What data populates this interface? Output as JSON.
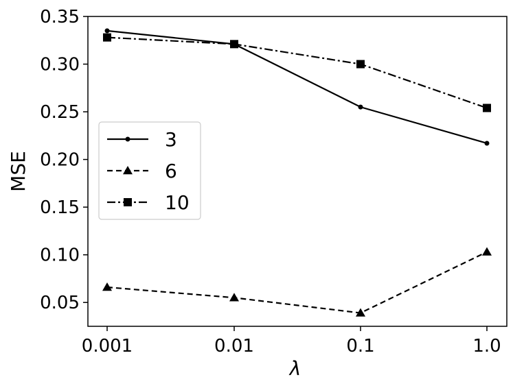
{
  "chart_data": {
    "type": "line",
    "categories": [
      "0.001",
      "0.01",
      "0.1",
      "1.0"
    ],
    "xlabel": "λ",
    "ylabel": "MSE",
    "ylim": [
      0.025,
      0.35
    ],
    "yticks": [
      "0.05",
      "0.10",
      "0.15",
      "0.20",
      "0.25",
      "0.30",
      "0.35"
    ],
    "grid": false,
    "legend_position": "center-left",
    "series": [
      {
        "name": "3",
        "values": [
          0.335,
          0.321,
          0.255,
          0.217
        ],
        "line_style": "solid",
        "marker": "circle",
        "color": "#000000"
      },
      {
        "name": "6",
        "values": [
          0.066,
          0.055,
          0.039,
          0.103
        ],
        "line_style": "dashed",
        "marker": "triangle",
        "color": "#000000"
      },
      {
        "name": "10",
        "values": [
          0.328,
          0.321,
          0.3,
          0.254
        ],
        "line_style": "dashdot",
        "marker": "square",
        "color": "#000000"
      }
    ]
  }
}
